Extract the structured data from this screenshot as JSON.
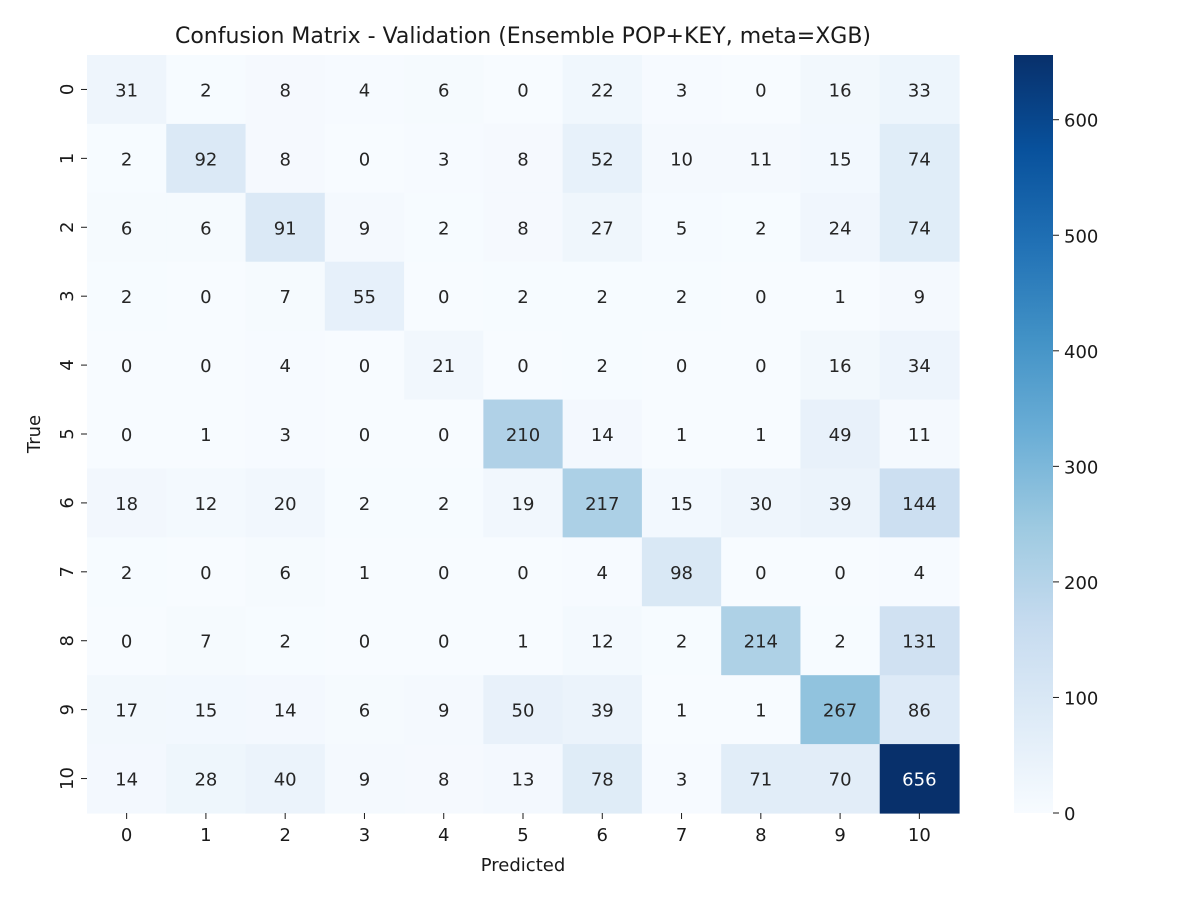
{
  "chart_data": {
    "type": "heatmap",
    "title": "Confusion Matrix - Validation (Ensemble POP+KEY, meta=XGB)",
    "xlabel": "Predicted",
    "ylabel": "True",
    "x_categories": [
      "0",
      "1",
      "2",
      "3",
      "4",
      "5",
      "6",
      "7",
      "8",
      "9",
      "10"
    ],
    "y_categories": [
      "0",
      "1",
      "2",
      "3",
      "4",
      "5",
      "6",
      "7",
      "8",
      "9",
      "10"
    ],
    "matrix": [
      [
        31,
        2,
        8,
        4,
        6,
        0,
        22,
        3,
        0,
        16,
        33
      ],
      [
        2,
        92,
        8,
        0,
        3,
        8,
        52,
        10,
        11,
        15,
        74
      ],
      [
        6,
        6,
        91,
        9,
        2,
        8,
        27,
        5,
        2,
        24,
        74
      ],
      [
        2,
        0,
        7,
        55,
        0,
        2,
        2,
        2,
        0,
        1,
        9
      ],
      [
        0,
        0,
        4,
        0,
        21,
        0,
        2,
        0,
        0,
        16,
        34
      ],
      [
        0,
        1,
        3,
        0,
        0,
        210,
        14,
        1,
        1,
        49,
        11
      ],
      [
        18,
        12,
        20,
        2,
        2,
        19,
        217,
        15,
        30,
        39,
        144
      ],
      [
        2,
        0,
        6,
        1,
        0,
        0,
        4,
        98,
        0,
        0,
        4
      ],
      [
        0,
        7,
        2,
        0,
        0,
        1,
        12,
        2,
        214,
        2,
        131
      ],
      [
        17,
        15,
        14,
        6,
        9,
        50,
        39,
        1,
        1,
        267,
        86
      ],
      [
        14,
        28,
        40,
        9,
        8,
        13,
        78,
        3,
        71,
        70,
        656
      ]
    ],
    "value_range": [
      0,
      656
    ],
    "colormap": "Blues",
    "colorbar": {
      "ticks": [
        0,
        100,
        200,
        300,
        400,
        500,
        600
      ],
      "tick_labels": [
        "0",
        "100",
        "200",
        "300",
        "400",
        "500",
        "600"
      ],
      "placement": "right"
    },
    "grid": false
  }
}
